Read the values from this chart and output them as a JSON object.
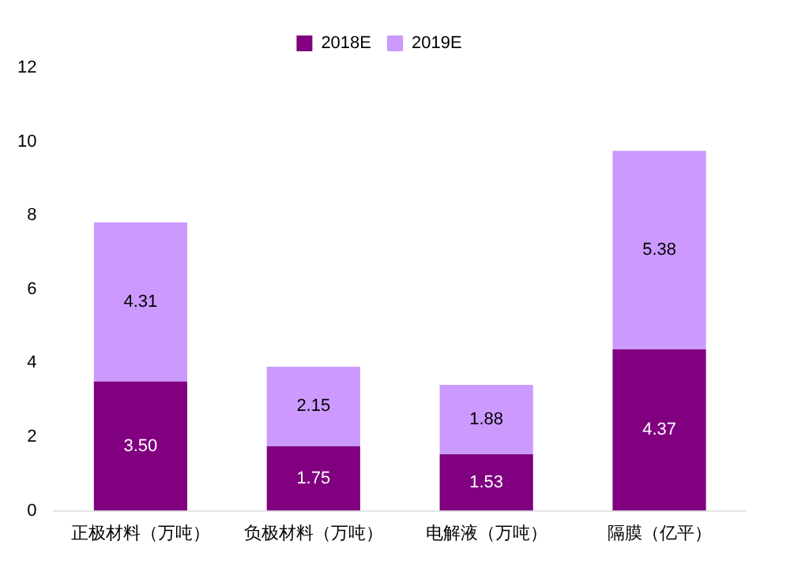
{
  "chart_data": {
    "type": "bar",
    "stacked": true,
    "categories": [
      "正极材料（万吨）",
      "负极材料（万吨）",
      "电解液（万吨）",
      "隔膜（亿平）"
    ],
    "series": [
      {
        "name": "2018E",
        "color": "#800080",
        "values": [
          3.5,
          1.75,
          1.53,
          4.37
        ],
        "value_labels": [
          "3.50",
          "1.75",
          "1.53",
          "4.37"
        ]
      },
      {
        "name": "2019E",
        "color": "#cc99ff",
        "values": [
          4.31,
          2.15,
          1.88,
          5.38
        ],
        "value_labels": [
          "4.31",
          "2.15",
          "1.88",
          "5.38"
        ]
      }
    ],
    "ylim": [
      0,
      12
    ],
    "yticks": [
      0,
      2,
      4,
      6,
      8,
      10,
      12
    ],
    "grid": false,
    "legend": "top"
  }
}
